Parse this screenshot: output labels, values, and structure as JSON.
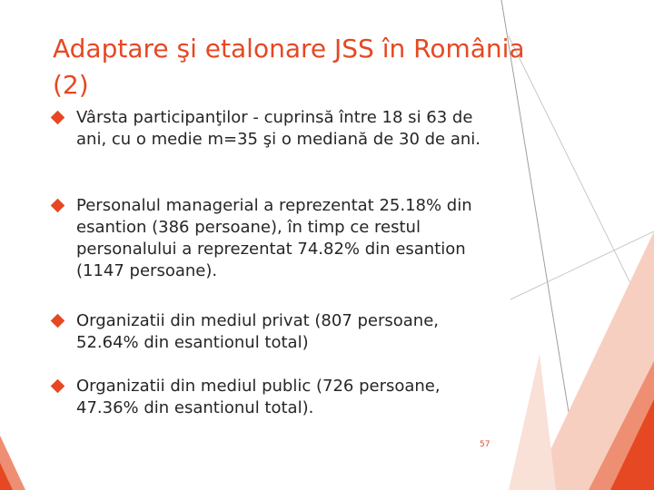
{
  "slide": {
    "title": "Adaptare şi etalonare JSS în România (2)",
    "bullets": [
      {
        "text": "Vârsta participanţilor - cuprinsă între 18 si 63 de ani, cu o medie m=35 şi o mediană de 30 de ani."
      },
      {
        "text": "Personalul managerial a reprezentat 25.18% din esantion (386 persoane), în timp ce restul personalului a reprezentat 74.82% din esantion (1147 persoane)."
      },
      {
        "text": "Organizatii din mediul privat (807 persoane, 52.64% din esantionul total)"
      },
      {
        "text": "Organizatii din mediul public (726 persoane, 47.36% din esantionul total)."
      }
    ],
    "page_number": "57"
  },
  "colors": {
    "accent": "#e64823",
    "text": "#262626",
    "background": "#ffffff"
  }
}
